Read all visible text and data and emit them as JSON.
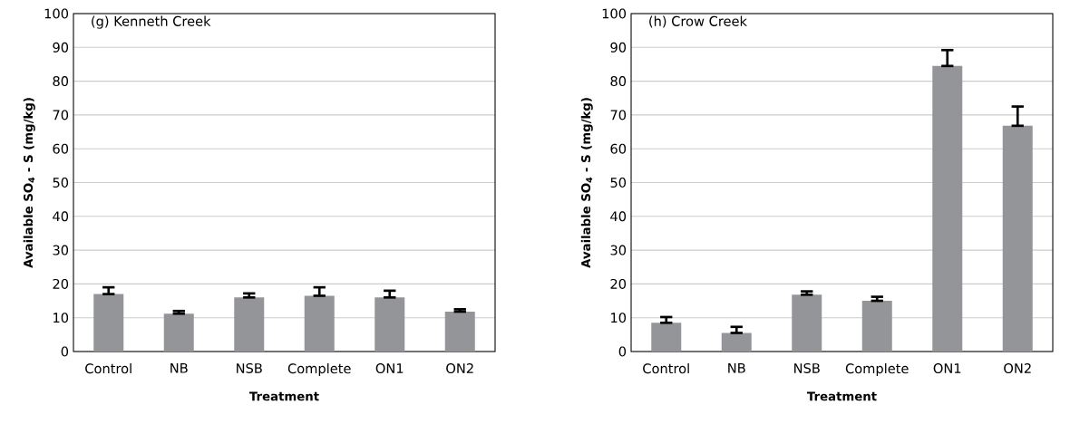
{
  "chart_data": [
    {
      "type": "bar",
      "title": "(g) Kenneth Creek",
      "xlabel": "Treatment",
      "ylabel": "Available SO$_{4}$ - S (mg/kg)",
      "categories": [
        "Control",
        "NB",
        "NSB",
        "Complete",
        "ON1",
        "ON2"
      ],
      "values": [
        17,
        11.2,
        16,
        16.5,
        16,
        11.8
      ],
      "errors": [
        [
          17,
          19
        ],
        [
          11.2,
          12
        ],
        [
          16,
          17.2
        ],
        [
          16.5,
          19
        ],
        [
          16,
          18
        ],
        [
          11.8,
          12.5
        ]
      ],
      "color": "#939598",
      "ylim": [
        0,
        100
      ],
      "yticks": [
        0,
        10,
        20,
        30,
        40,
        50,
        60,
        70,
        80,
        90,
        100
      ],
      "grid": "y"
    },
    {
      "type": "bar",
      "title": "(h) Crow Creek",
      "xlabel": "Treatment",
      "ylabel": "Available SO$_{4}$ - S (mg/kg)",
      "categories": [
        "Control",
        "NB",
        "NSB",
        "Complete",
        "ON1",
        "ON2"
      ],
      "values": [
        8.5,
        5.5,
        16.8,
        15,
        84.5,
        66.8
      ],
      "errors": [
        [
          8.5,
          10.2
        ],
        [
          5.5,
          7.3
        ],
        [
          16.8,
          17.8
        ],
        [
          15,
          16.2
        ],
        [
          84.5,
          89.2
        ],
        [
          66.8,
          72.5
        ]
      ],
      "color": "#939598",
      "ylim": [
        0,
        100
      ],
      "yticks": [
        0,
        10,
        20,
        30,
        40,
        50,
        60,
        70,
        80,
        90,
        100
      ],
      "grid": "y"
    }
  ]
}
